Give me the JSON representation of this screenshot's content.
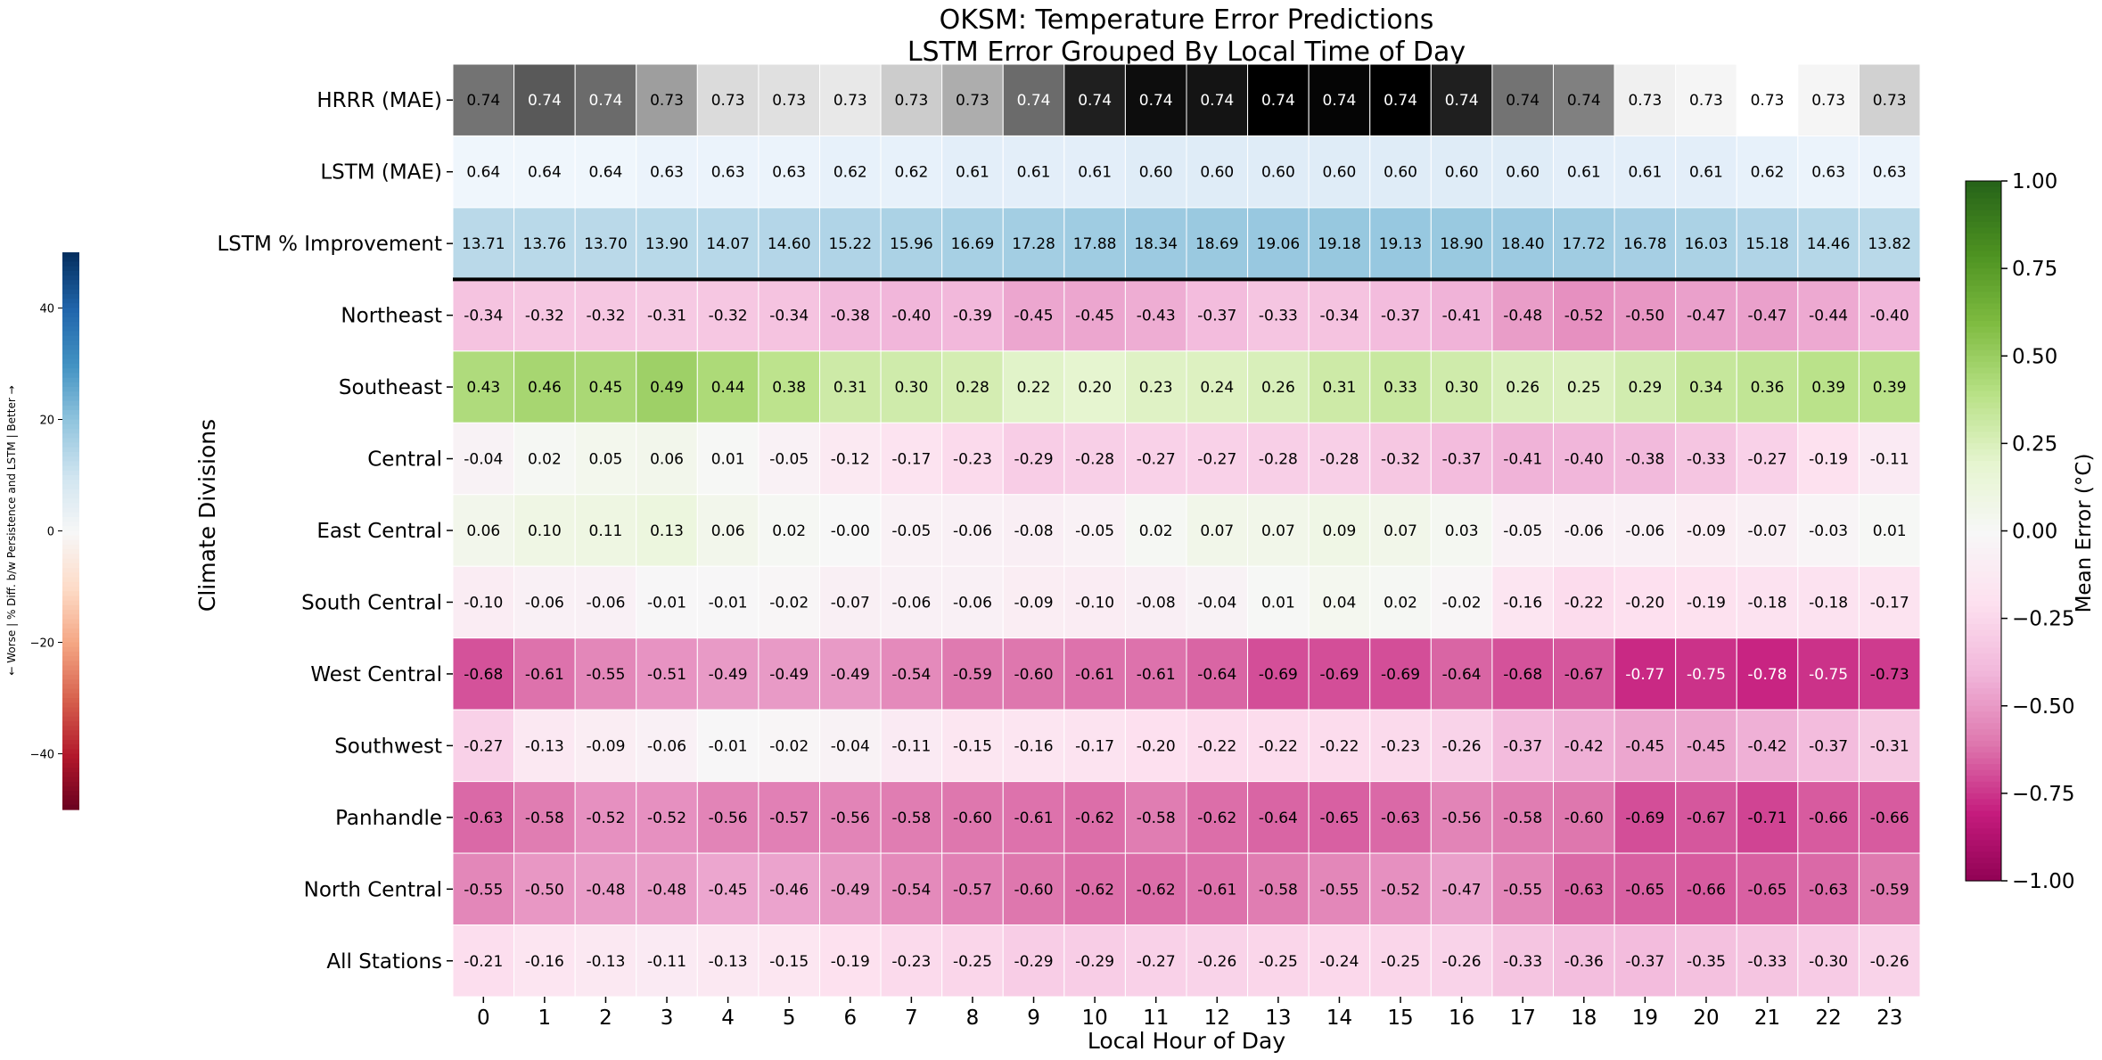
{
  "chart_data": {
    "type": "heatmap",
    "title": "OKSM: Temperature Error Predictions",
    "subtitle": "LSTM Error Grouped By Local Time of Day",
    "xlabel": "Local Hour of Day",
    "ylabel": "Climate Divisions",
    "x": [
      "0",
      "1",
      "2",
      "3",
      "4",
      "5",
      "6",
      "7",
      "8",
      "9",
      "10",
      "11",
      "12",
      "13",
      "14",
      "15",
      "16",
      "17",
      "18",
      "19",
      "20",
      "21",
      "22",
      "23"
    ],
    "rows": [
      {
        "name": "HRRR (MAE)",
        "colormap": "greys",
        "values": [
          0.74,
          0.74,
          0.74,
          0.73,
          0.73,
          0.73,
          0.73,
          0.73,
          0.73,
          0.74,
          0.74,
          0.74,
          0.74,
          0.74,
          0.74,
          0.74,
          0.74,
          0.74,
          0.74,
          0.73,
          0.73,
          0.73,
          0.73,
          0.73
        ],
        "shade": [
          0.55,
          0.65,
          0.58,
          0.38,
          0.14,
          0.12,
          0.09,
          0.2,
          0.32,
          0.58,
          0.88,
          0.95,
          0.92,
          1.0,
          0.98,
          1.0,
          0.88,
          0.55,
          0.5,
          0.06,
          0.04,
          0.0,
          0.04,
          0.18
        ]
      },
      {
        "name": "LSTM (MAE)",
        "colormap": "blues",
        "values": [
          0.64,
          0.64,
          0.64,
          0.63,
          0.63,
          0.63,
          0.62,
          0.62,
          0.61,
          0.61,
          0.61,
          0.6,
          0.6,
          0.6,
          0.6,
          0.6,
          0.6,
          0.6,
          0.61,
          0.61,
          0.61,
          0.62,
          0.63,
          0.63
        ]
      },
      {
        "name": "LSTM % Improvement",
        "colormap": "rdbu",
        "values": [
          13.71,
          13.76,
          13.7,
          13.9,
          14.07,
          14.6,
          15.22,
          15.96,
          16.69,
          17.28,
          17.88,
          18.34,
          18.69,
          19.06,
          19.18,
          19.13,
          18.9,
          18.4,
          17.72,
          16.78,
          16.03,
          15.18,
          14.46,
          13.82
        ]
      },
      {
        "name": "Northeast",
        "colormap": "piyg",
        "values": [
          -0.34,
          -0.32,
          -0.32,
          -0.31,
          -0.32,
          -0.34,
          -0.38,
          -0.4,
          -0.39,
          -0.45,
          -0.45,
          -0.43,
          -0.37,
          -0.33,
          -0.34,
          -0.37,
          -0.41,
          -0.48,
          -0.52,
          -0.5,
          -0.47,
          -0.47,
          -0.44,
          -0.4
        ]
      },
      {
        "name": "Southeast",
        "colormap": "piyg",
        "values": [
          0.43,
          0.46,
          0.45,
          0.49,
          0.44,
          0.38,
          0.31,
          0.3,
          0.28,
          0.22,
          0.2,
          0.23,
          0.24,
          0.26,
          0.31,
          0.33,
          0.3,
          0.26,
          0.25,
          0.29,
          0.34,
          0.36,
          0.39,
          0.39
        ]
      },
      {
        "name": "Central",
        "colormap": "piyg",
        "values": [
          -0.04,
          0.02,
          0.05,
          0.06,
          0.01,
          -0.05,
          -0.12,
          -0.17,
          -0.23,
          -0.29,
          -0.28,
          -0.27,
          -0.27,
          -0.28,
          -0.28,
          -0.32,
          -0.37,
          -0.41,
          -0.4,
          -0.38,
          -0.33,
          -0.27,
          -0.19,
          -0.11
        ]
      },
      {
        "name": "East Central",
        "colormap": "piyg",
        "values": [
          0.06,
          0.1,
          0.11,
          0.13,
          0.06,
          0.02,
          -0.0,
          -0.05,
          -0.06,
          -0.08,
          -0.05,
          0.02,
          0.07,
          0.07,
          0.09,
          0.07,
          0.03,
          -0.05,
          -0.06,
          -0.06,
          -0.09,
          -0.07,
          -0.03,
          0.01
        ]
      },
      {
        "name": "South Central",
        "colormap": "piyg",
        "values": [
          -0.1,
          -0.06,
          -0.06,
          -0.01,
          -0.01,
          -0.02,
          -0.07,
          -0.06,
          -0.06,
          -0.09,
          -0.1,
          -0.08,
          -0.04,
          0.01,
          0.04,
          0.02,
          -0.02,
          -0.16,
          -0.22,
          -0.2,
          -0.19,
          -0.18,
          -0.18,
          -0.17
        ]
      },
      {
        "name": "West Central",
        "colormap": "piyg",
        "values": [
          -0.68,
          -0.61,
          -0.55,
          -0.51,
          -0.49,
          -0.49,
          -0.49,
          -0.54,
          -0.59,
          -0.6,
          -0.61,
          -0.61,
          -0.64,
          -0.69,
          -0.69,
          -0.69,
          -0.64,
          -0.68,
          -0.67,
          -0.77,
          -0.75,
          -0.78,
          -0.75,
          -0.73
        ]
      },
      {
        "name": "Southwest",
        "colormap": "piyg",
        "values": [
          -0.27,
          -0.13,
          -0.09,
          -0.06,
          -0.01,
          -0.02,
          -0.04,
          -0.11,
          -0.15,
          -0.16,
          -0.17,
          -0.2,
          -0.22,
          -0.22,
          -0.22,
          -0.23,
          -0.26,
          -0.37,
          -0.42,
          -0.45,
          -0.45,
          -0.42,
          -0.37,
          -0.31
        ]
      },
      {
        "name": "Panhandle",
        "colormap": "piyg",
        "values": [
          -0.63,
          -0.58,
          -0.52,
          -0.52,
          -0.56,
          -0.57,
          -0.56,
          -0.58,
          -0.6,
          -0.61,
          -0.62,
          -0.58,
          -0.62,
          -0.64,
          -0.65,
          -0.63,
          -0.56,
          -0.58,
          -0.6,
          -0.69,
          -0.67,
          -0.71,
          -0.66,
          -0.66
        ]
      },
      {
        "name": "North Central",
        "colormap": "piyg",
        "values": [
          -0.55,
          -0.5,
          -0.48,
          -0.48,
          -0.45,
          -0.46,
          -0.49,
          -0.54,
          -0.57,
          -0.6,
          -0.62,
          -0.62,
          -0.61,
          -0.58,
          -0.55,
          -0.52,
          -0.47,
          -0.55,
          -0.63,
          -0.65,
          -0.66,
          -0.65,
          -0.63,
          -0.59
        ]
      },
      {
        "name": "All Stations",
        "colormap": "piyg",
        "values": [
          -0.21,
          -0.16,
          -0.13,
          -0.11,
          -0.13,
          -0.15,
          -0.19,
          -0.23,
          -0.25,
          -0.29,
          -0.29,
          -0.27,
          -0.26,
          -0.25,
          -0.24,
          -0.25,
          -0.26,
          -0.33,
          -0.36,
          -0.37,
          -0.35,
          -0.33,
          -0.3,
          -0.26
        ]
      }
    ],
    "colorbar_main": {
      "label": "Mean Error (°C)",
      "range": [
        -1.0,
        1.0
      ],
      "ticks": [
        "1.00",
        "0.75",
        "0.50",
        "0.25",
        "0.00",
        "−0.25",
        "−0.50",
        "−0.75",
        "−1.00"
      ],
      "tick_values": [
        1.0,
        0.75,
        0.5,
        0.25,
        0.0,
        -0.25,
        -0.5,
        -0.75,
        -1.0
      ],
      "colormap": "PiYG"
    },
    "colorbar_left": {
      "label": "← Worse | % Diff. b/w Persistence and LSTM | Better →",
      "range": [
        -50,
        50
      ],
      "ticks": [
        "40",
        "20",
        "0",
        "−20",
        "−40"
      ],
      "tick_values": [
        40,
        20,
        0,
        -20,
        -40
      ],
      "colormap": "RdBu"
    },
    "separator_after_row": 3,
    "colors": {
      "divider_line": "#000000",
      "cell_border": "#ffffff"
    }
  }
}
